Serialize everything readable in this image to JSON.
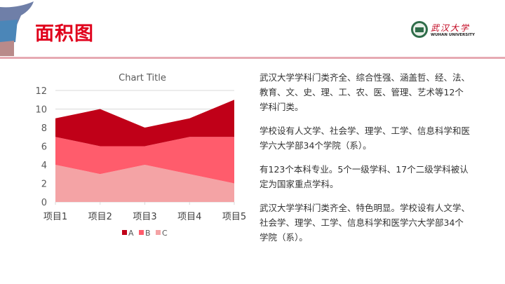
{
  "slide": {
    "title": "面积图",
    "logo": {
      "name_cn": "武汉大学",
      "name_en": "WUHAN UNIVERSITY"
    },
    "paragraphs": [
      "武汉大学学科门类齐全、综合性强、涵盖哲、经、法、教育、文、史、理、工、农、医、管理、艺术等12个学科门类。",
      "学校设有人文学、社会学、理学、工学、信息科学和医学六大学部34个学院（系）。",
      "有123个本科专业。5个一级学科、17个二级学科被认定为国家重点学科。",
      "武汉大学学科门类齐全、特色明显。学校设有人文学、社会学、理学、工学、信息科学和医学六大学部34个学院（系）。"
    ]
  },
  "chart_data": {
    "type": "area",
    "stacked": true,
    "title": "Chart Title",
    "categories": [
      "项目1",
      "项目2",
      "项目3",
      "项目4",
      "项目5"
    ],
    "series": [
      {
        "name": "A",
        "values": [
          2,
          4,
          2,
          2,
          4
        ],
        "color": "#c00018"
      },
      {
        "name": "B",
        "values": [
          3,
          3,
          2,
          4,
          5
        ],
        "color": "#ff5c6c"
      },
      {
        "name": "C",
        "values": [
          4,
          3,
          4,
          3,
          2
        ],
        "color": "#f4a3a5"
      }
    ],
    "ylim": [
      0,
      12
    ],
    "yticks": [
      "0",
      "2",
      "4",
      "6",
      "8",
      "10",
      "12"
    ],
    "grid": true,
    "legend": "bottom"
  }
}
